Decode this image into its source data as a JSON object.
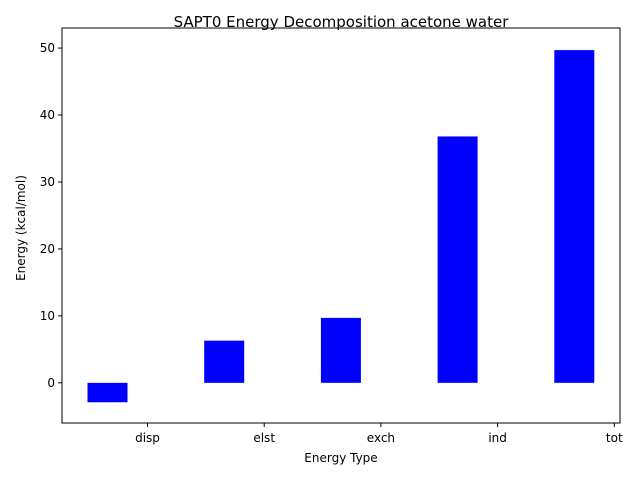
{
  "chart_data": {
    "type": "bar",
    "title": "SAPT0 Energy Decomposition acetone water",
    "xlabel": "Energy Type",
    "ylabel": "Energy (kcal/mol)",
    "categories": [
      "disp",
      "elst",
      "exch",
      "ind",
      "tot"
    ],
    "values": [
      -2.9,
      6.3,
      9.7,
      36.8,
      49.7
    ],
    "ylim": [
      -6,
      53
    ],
    "yticks": [
      0,
      10,
      20,
      30,
      40,
      50
    ],
    "bar_color": "#0000ff",
    "grid": false,
    "legend": "none"
  }
}
